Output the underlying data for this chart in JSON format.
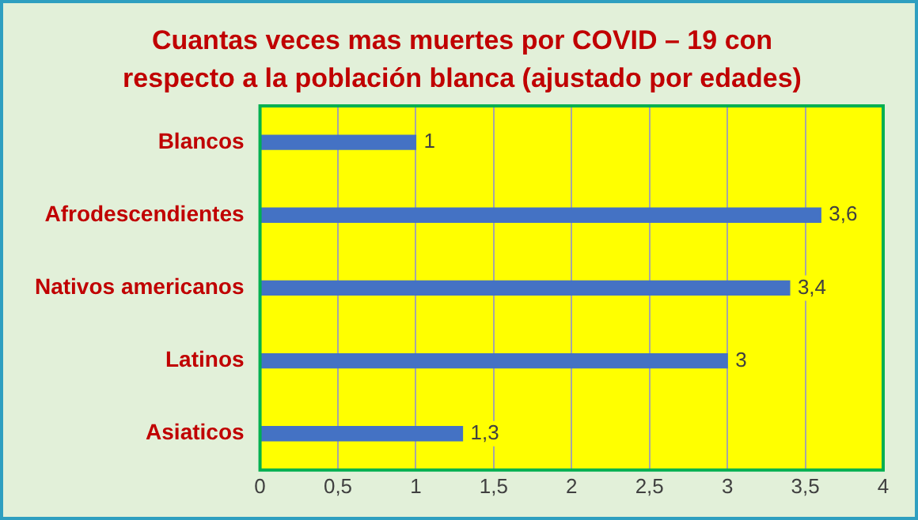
{
  "chart_data": {
    "type": "bar",
    "orientation": "horizontal",
    "title": "Cuantas veces mas muertes por COVID – 19 con respecto a la población blanca (ajustado por edades)",
    "categories": [
      "Blancos",
      "Afrodescendientes",
      "Nativos americanos",
      "Latinos",
      "Asiaticos"
    ],
    "values": [
      1,
      3.6,
      3.4,
      3,
      1.3
    ],
    "color": "#4472c4",
    "value_labels": [
      "1",
      "3,6",
      "3,4",
      "3",
      "1,3"
    ],
    "xlim": [
      0,
      4
    ],
    "xticks": [
      0,
      {
        "value": 0.5,
        "label": "0,5"
      },
      1,
      {
        "value": 1.5,
        "label": "1,5"
      },
      2,
      {
        "value": 2.5,
        "label": "2,5"
      },
      3,
      {
        "value": 3.5,
        "label": "3,5"
      },
      4
    ],
    "grid": "x",
    "legend": false
  }
}
